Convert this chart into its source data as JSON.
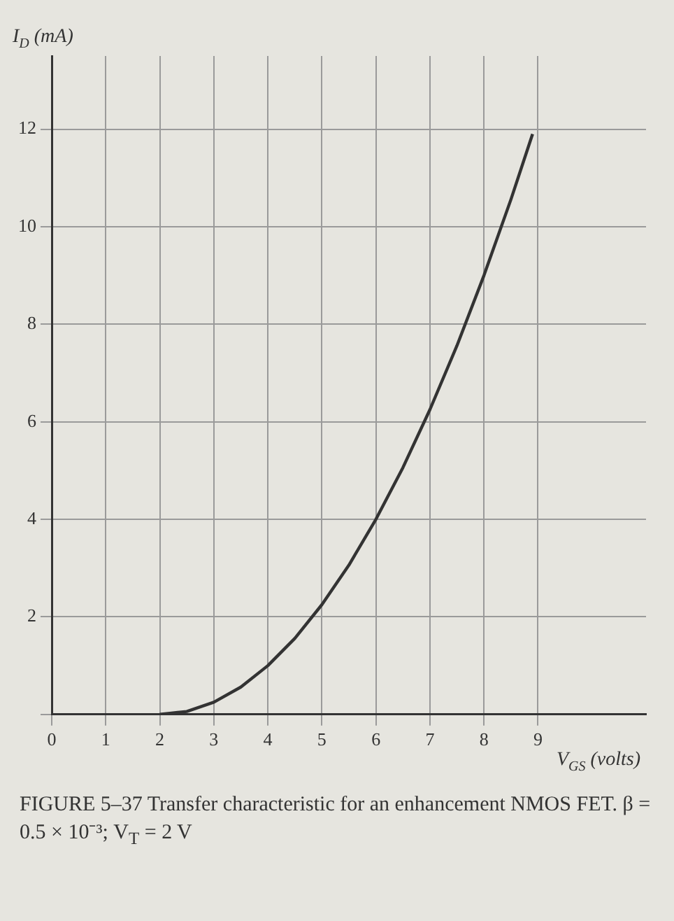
{
  "chart_data": {
    "type": "line",
    "title": "FIGURE 5–37 Transfer characteristic for an enhancement NMOS FET. β = 0.5 × 10⁻³; V$_{T}$ = 2 V",
    "xlabel": "V$_{GS}$ (volts)",
    "ylabel": "I$_{D}$ (mA)",
    "x": [
      2,
      2.5,
      3,
      3.5,
      4,
      4.5,
      5,
      5.5,
      6,
      6.5,
      7,
      7.5,
      8,
      8.5,
      8.9
    ],
    "series": [
      {
        "color": "#333333",
        "values": [
          0,
          0.06,
          0.25,
          0.56,
          1,
          1.56,
          2.25,
          3.06,
          4,
          5.06,
          6.25,
          7.56,
          9,
          10.56,
          11.9
        ]
      }
    ],
    "xlim": [
      0,
      11
    ],
    "ylim": [
      0,
      13.5
    ],
    "xticks": [
      0,
      1,
      2,
      3,
      4,
      5,
      6,
      7,
      8,
      9
    ],
    "yticks": [
      {
        "value": 0,
        "label": null
      },
      2,
      4,
      6,
      8,
      10,
      12
    ],
    "grid": true,
    "legend": false,
    "marker": "none",
    "line_style": "solid"
  }
}
